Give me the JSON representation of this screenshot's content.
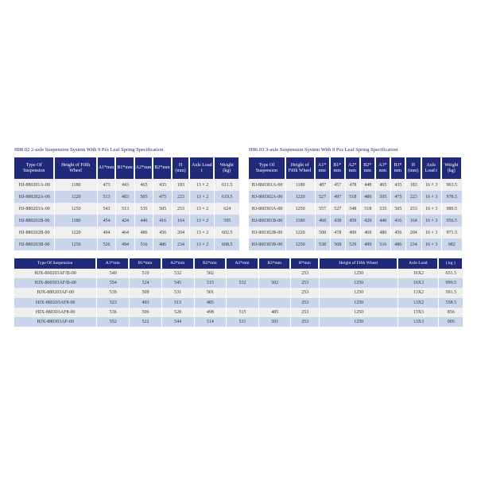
{
  "colors": {
    "header": "#20297a",
    "row_light": "#efefef",
    "row_blue": "#c8d5ea"
  },
  "table1": {
    "title": "H88.02 2-axle Suspension System With 9 Pcs Leaf Spring Specification",
    "headers": [
      "Type Of Suspension",
      "Height of Fifth Wheel",
      "A1*mm",
      "B1*mm",
      "A2*mm",
      "B2*mm",
      "H (mm)",
      "Axle Load t",
      "Weight (kg)"
    ],
    "rows": [
      [
        "HJ-880201A-00",
        "1180",
        "473",
        "443",
        "465",
        "435",
        "183",
        "13 × 2",
        "611.5"
      ],
      [
        "HJ-880202A-00",
        "1220",
        "513",
        "483",
        "505",
        "475",
        "223",
        "13 × 2",
        "619.5"
      ],
      [
        "HJ-880203A-00",
        "1250",
        "543",
        "513",
        "535",
        "505",
        "253",
        "13 × 2",
        "624"
      ],
      [
        "HJ-880201B-00",
        "1180",
        "454",
        "424",
        "446",
        "416",
        "164",
        "13 × 2",
        "595"
      ],
      [
        "HJ-880202B-00",
        "1220",
        "494",
        "464",
        "486",
        "456",
        "204",
        "13 × 2",
        "602.5"
      ],
      [
        "HJ-880203B-00",
        "1250",
        "526",
        "494",
        "516",
        "486",
        "234",
        "13 × 2",
        "608.5"
      ]
    ]
  },
  "table2": {
    "title": "H86.03 3-axle Suspension System With 9 Pcs Leaf Spring Specification",
    "headers": [
      "Type Of Suspension",
      "Height of Fifth Wheel",
      "A1* mm",
      "B1* mm",
      "A2* mm",
      "B2* mm",
      "A3* mm",
      "B3* mm",
      "H (mm)",
      "Axle Load t",
      "Weight (kg)"
    ],
    "rows": [
      [
        "HJ-860301A-00",
        "1180",
        "487",
        "457",
        "478",
        "448",
        "465",
        "435",
        "183",
        "16 × 3",
        "963.5"
      ],
      [
        "HJ-860302A-00",
        "1220",
        "527",
        "497",
        "518",
        "488",
        "505",
        "475",
        "223",
        "16 × 3",
        "978.5"
      ],
      [
        "HJ-860303A-00",
        "1250",
        "557",
        "527",
        "548",
        "518",
        "535",
        "505",
        "253",
        "16 × 3",
        "989.5"
      ],
      [
        "HJ-860301B-00",
        "1180",
        "468",
        "438",
        "459",
        "429",
        "446",
        "416",
        "164",
        "16 × 3",
        "956.5"
      ],
      [
        "HJ-860302B-00",
        "1220",
        "508",
        "478",
        "499",
        "469",
        "486",
        "456",
        "204",
        "16 × 3",
        "971.5"
      ],
      [
        "HJ-860303B-00",
        "1250",
        "538",
        "508",
        "529",
        "499",
        "516",
        "486",
        "234",
        "16 × 3",
        "982"
      ]
    ]
  },
  "table3": {
    "headers": [
      "Type Of Suspension",
      "A1*mm",
      "B1*mm",
      "A2*mm",
      "B2*mm",
      "A3*mm",
      "B3*mm",
      "H*mm",
      "Height of Fifth Wheel",
      "Axle Load",
      "( kg )"
    ],
    "rows": [
      [
        "HJX-860203AF/B-00",
        "540",
        "510",
        "532",
        "502",
        "",
        "",
        "253",
        "1250",
        "16X2",
        "651.5"
      ],
      [
        "HJX-860303AF/B-00",
        "554",
        "524",
        "545",
        "515",
        "532",
        "502",
        "253",
        "1250",
        "16X3",
        "999.5"
      ],
      [
        "HJX-880203AF-00",
        "539",
        "509",
        "531",
        "501",
        "",
        "",
        "253",
        "1250",
        "13X2",
        "591.5"
      ],
      [
        "HJX-880203AF8-00",
        "523",
        "493",
        "515",
        "485",
        "",
        "",
        "253",
        "1250",
        "13X2",
        "558.5"
      ],
      [
        "HJX-880303AF8-00",
        "536",
        "506",
        "528",
        "498",
        "515",
        "485",
        "253",
        "1250",
        "13X3",
        "856"
      ],
      [
        "HJX-880303AF-00",
        "552",
        "522",
        "544",
        "514",
        "531",
        "501",
        "253",
        "1250",
        "13X3",
        "905"
      ]
    ]
  }
}
